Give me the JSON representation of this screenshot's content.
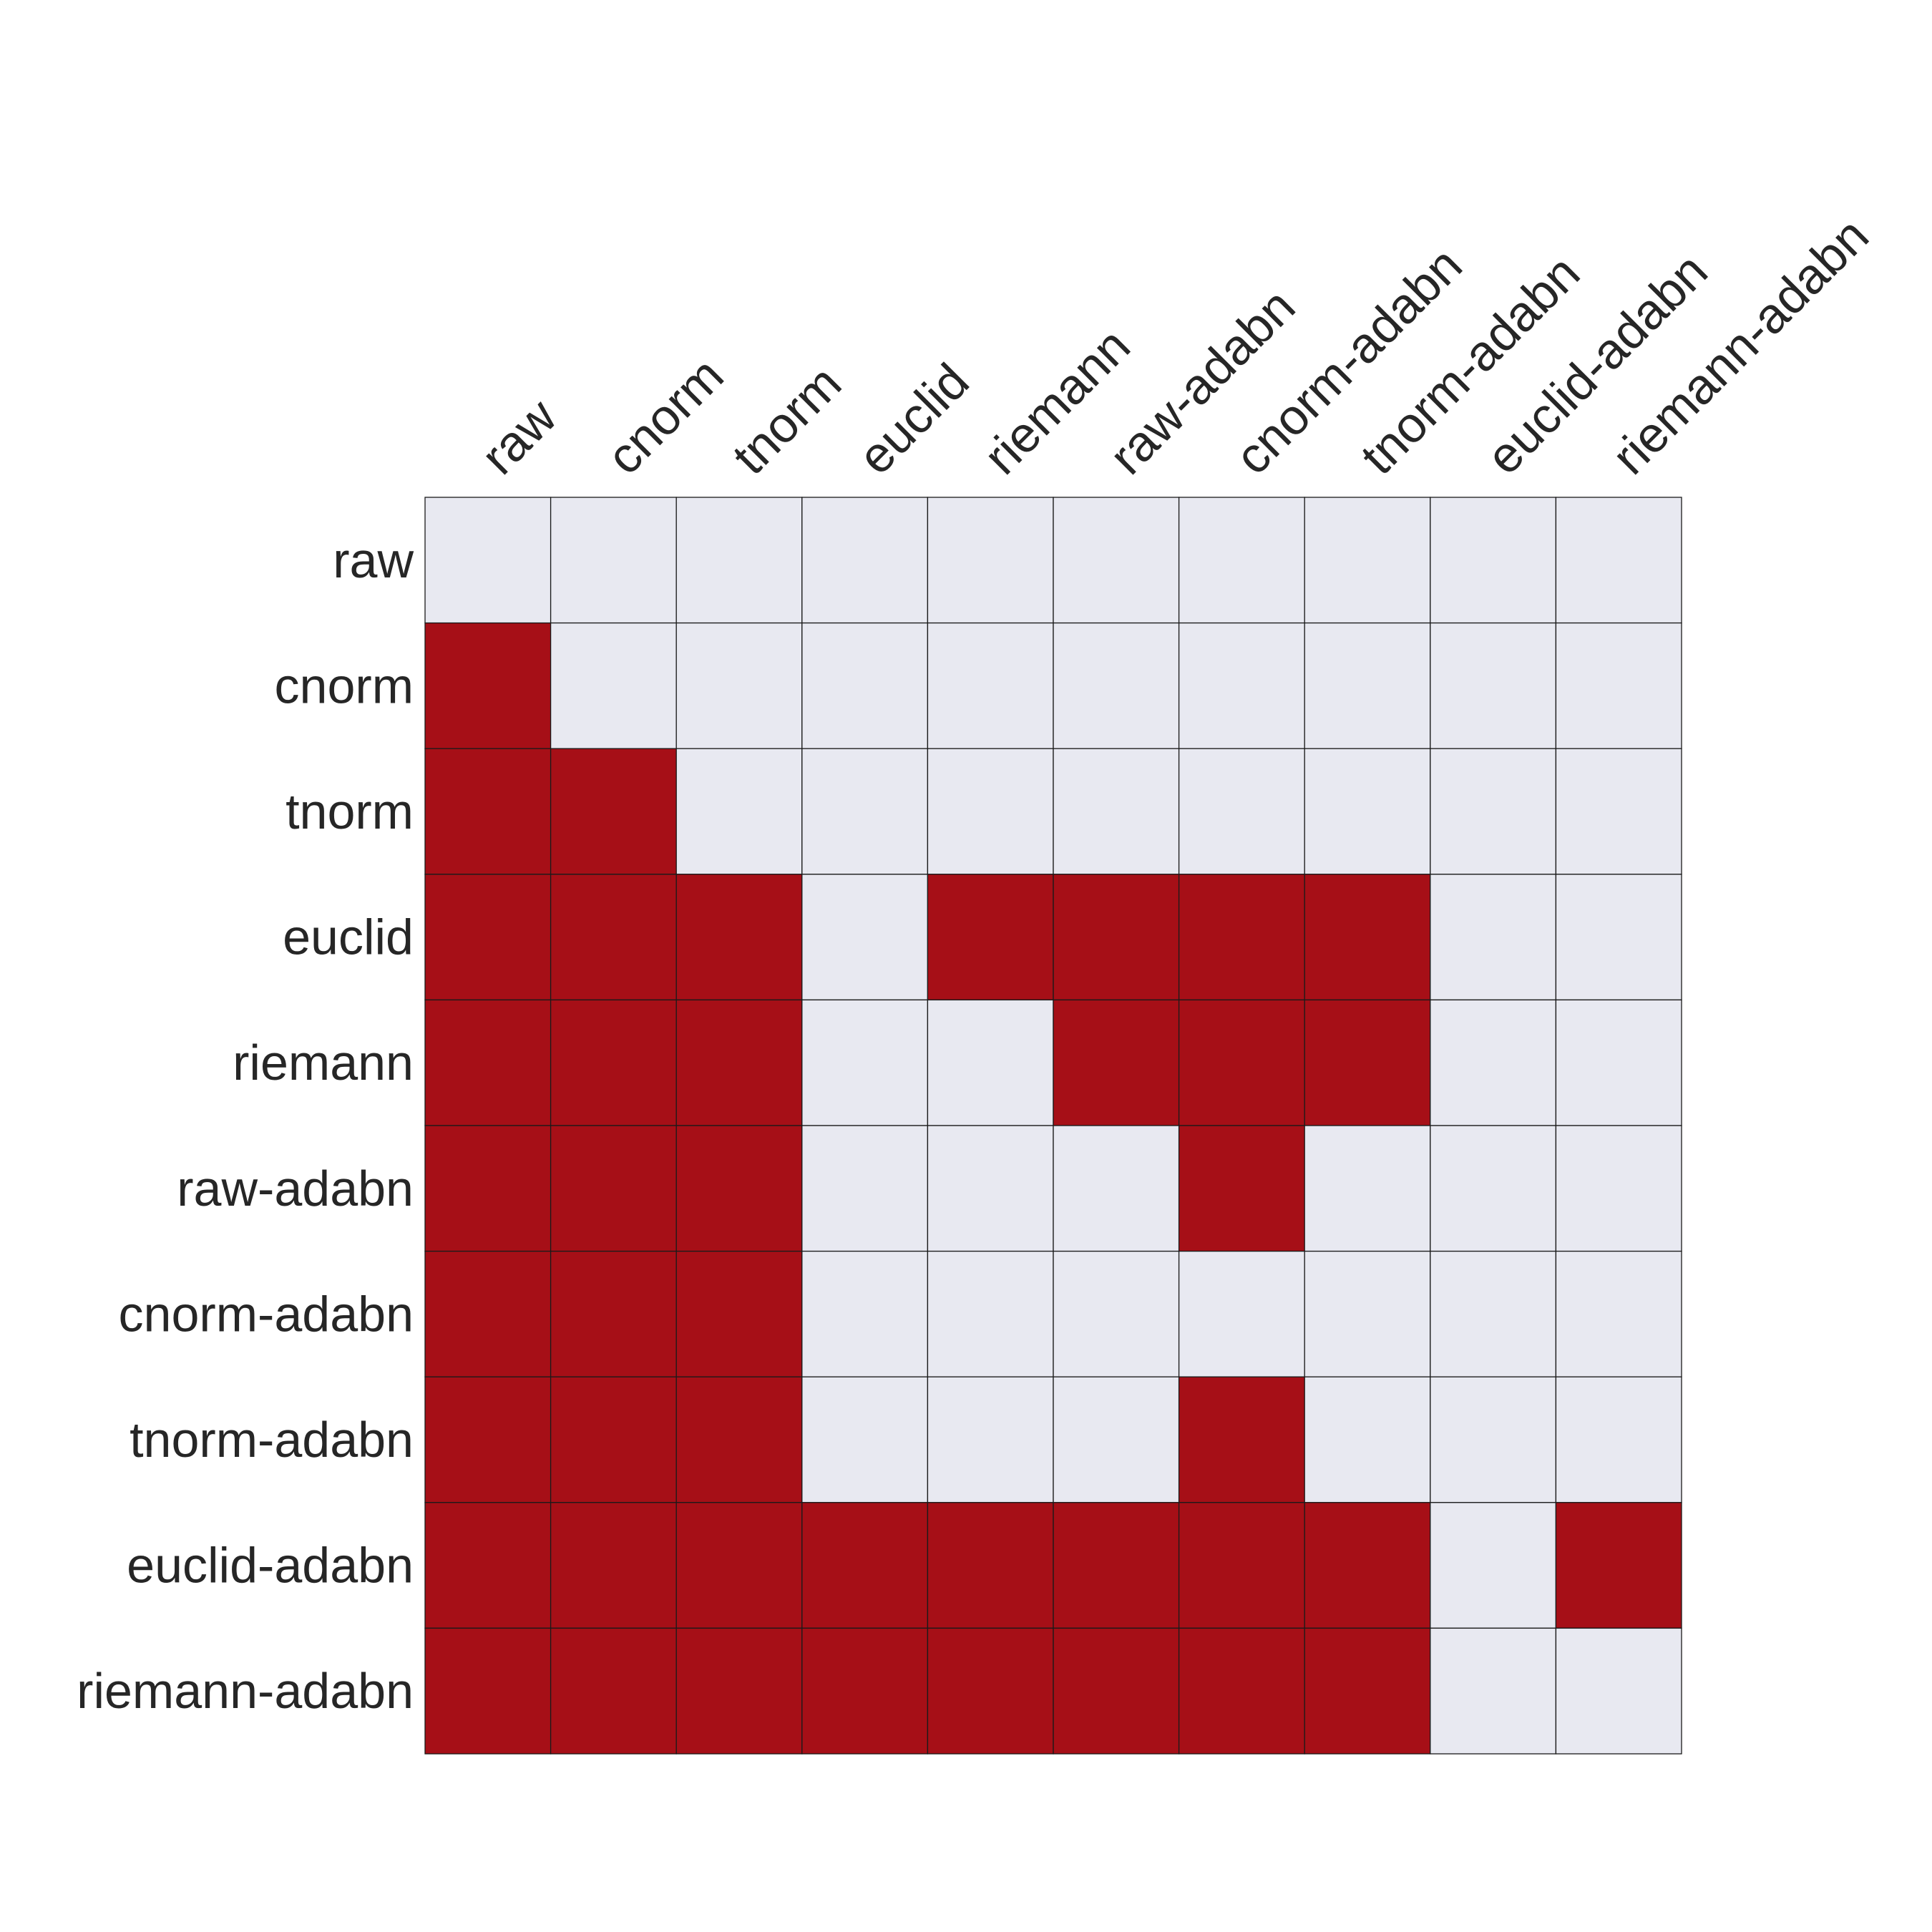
{
  "chart_data": {
    "type": "heatmap",
    "title": "",
    "xlabel": "",
    "ylabel": "",
    "x_labels": [
      "raw",
      "cnorm",
      "tnorm",
      "euclid",
      "riemann",
      "raw-adabn",
      "cnorm-adabn",
      "tnorm-adabn",
      "euclid-adabn",
      "riemann-adabn"
    ],
    "y_labels": [
      "raw",
      "cnorm",
      "tnorm",
      "euclid",
      "riemann",
      "raw-adabn",
      "cnorm-adabn",
      "tnorm-adabn",
      "euclid-adabn",
      "riemann-adabn"
    ],
    "x_axis_position": "top",
    "x_label_rotation_deg": -45,
    "grid": true,
    "legend": "none",
    "values": [
      [
        0,
        0,
        0,
        0,
        0,
        0,
        0,
        0,
        0,
        0
      ],
      [
        1,
        0,
        0,
        0,
        0,
        0,
        0,
        0,
        0,
        0
      ],
      [
        1,
        1,
        0,
        0,
        0,
        0,
        0,
        0,
        0,
        0
      ],
      [
        1,
        1,
        1,
        0,
        1,
        1,
        1,
        1,
        0,
        0
      ],
      [
        1,
        1,
        1,
        0,
        0,
        1,
        1,
        1,
        0,
        0
      ],
      [
        1,
        1,
        1,
        0,
        0,
        0,
        1,
        0,
        0,
        0
      ],
      [
        1,
        1,
        1,
        0,
        0,
        0,
        0,
        0,
        0,
        0
      ],
      [
        1,
        1,
        1,
        0,
        0,
        0,
        1,
        0,
        0,
        0
      ],
      [
        1,
        1,
        1,
        1,
        1,
        1,
        1,
        1,
        0,
        1
      ],
      [
        1,
        1,
        1,
        1,
        1,
        1,
        1,
        1,
        0,
        0
      ]
    ],
    "colors": {
      "on": "#a60f17",
      "off": "#e8e9f1",
      "gridline": "#1a1a1a",
      "text": "#262626"
    }
  }
}
